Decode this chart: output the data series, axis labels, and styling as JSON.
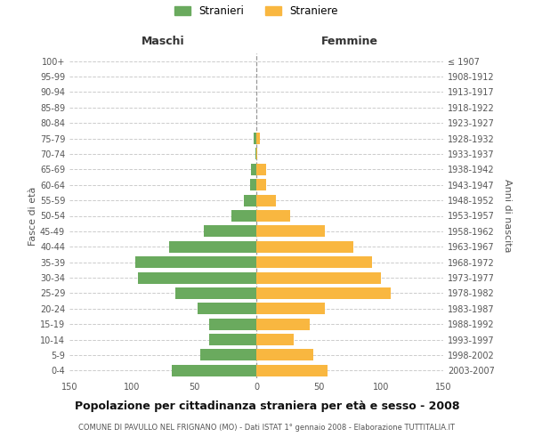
{
  "age_groups": [
    "0-4",
    "5-9",
    "10-14",
    "15-19",
    "20-24",
    "25-29",
    "30-34",
    "35-39",
    "40-44",
    "45-49",
    "50-54",
    "55-59",
    "60-64",
    "65-69",
    "70-74",
    "75-79",
    "80-84",
    "85-89",
    "90-94",
    "95-99",
    "100+"
  ],
  "birth_years": [
    "2003-2007",
    "1998-2002",
    "1993-1997",
    "1988-1992",
    "1983-1987",
    "1978-1982",
    "1973-1977",
    "1968-1972",
    "1963-1967",
    "1958-1962",
    "1953-1957",
    "1948-1952",
    "1943-1947",
    "1938-1942",
    "1933-1937",
    "1928-1932",
    "1923-1927",
    "1918-1922",
    "1913-1917",
    "1908-1912",
    "≤ 1907"
  ],
  "males": [
    68,
    45,
    38,
    38,
    47,
    65,
    95,
    97,
    70,
    42,
    20,
    10,
    5,
    4,
    1,
    2,
    0,
    0,
    0,
    0,
    0
  ],
  "females": [
    57,
    46,
    30,
    43,
    55,
    108,
    100,
    93,
    78,
    55,
    27,
    16,
    8,
    8,
    1,
    3,
    0,
    0,
    0,
    0,
    0
  ],
  "male_color": "#6aaa5e",
  "female_color": "#f9b740",
  "title": "Popolazione per cittadinanza straniera per età e sesso - 2008",
  "subtitle": "COMUNE DI PAVULLO NEL FRIGNANO (MO) - Dati ISTAT 1° gennaio 2008 - Elaborazione TUTTITALIA.IT",
  "ylabel_left": "Fasce di età",
  "ylabel_right": "Anni di nascita",
  "legend_male": "Stranieri",
  "legend_female": "Straniere",
  "header_left": "Maschi",
  "header_right": "Femmine",
  "xlim": 150,
  "background_color": "#ffffff",
  "grid_color": "#cccccc"
}
